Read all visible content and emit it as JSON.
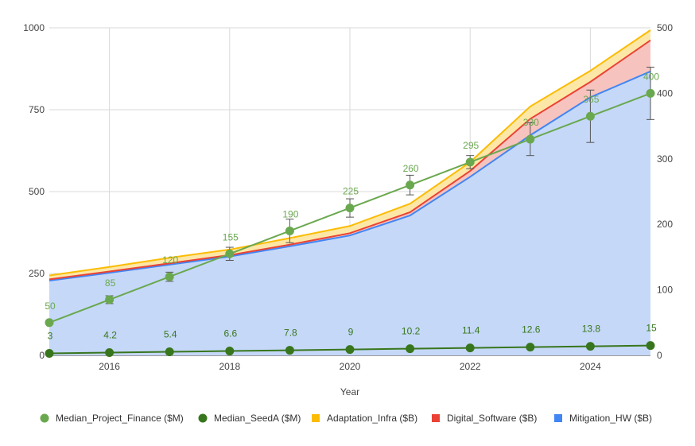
{
  "chart_data": {
    "type": "area",
    "title": "",
    "xlabel": "Year",
    "x": [
      2015,
      2016,
      2017,
      2018,
      2019,
      2020,
      2021,
      2022,
      2023,
      2024,
      2025
    ],
    "x_ticks": [
      "2016",
      "2018",
      "2020",
      "2022",
      "2024"
    ],
    "y_left_ticks": [
      "0",
      "250",
      "500",
      "750",
      "1000"
    ],
    "y_right_ticks": [
      "0",
      "100",
      "200",
      "300",
      "400",
      "500"
    ],
    "ylim_left": [
      0,
      1000
    ],
    "ylim_right": [
      0,
      500
    ],
    "grid": true,
    "legend_position": "bottom",
    "stacked_series": [
      {
        "name": "Mitigation_HW ($B)",
        "color": "#4285f4",
        "fill": "#c5d8f8",
        "values": [
          228,
          252,
          277,
          302,
          333,
          366,
          427,
          545,
          672,
          788,
          867
        ]
      },
      {
        "name": "Digital_Software ($B)",
        "color": "#ea4335",
        "fill": "#f7c3be",
        "values": [
          4,
          4,
          4,
          4,
          5,
          7,
          10,
          18,
          50,
          47,
          95
        ]
      },
      {
        "name": "Adaptation_Infra ($B)",
        "color": "#fbbc04",
        "fill": "#fde7a6",
        "values": [
          12,
          14,
          17,
          17,
          20,
          22,
          26,
          27,
          38,
          34,
          31
        ]
      }
    ],
    "line_series": [
      {
        "name": "Median_Project_Finance ($M)",
        "axis": "right",
        "color": "#6aa84f",
        "values": [
          50,
          85,
          120,
          155,
          190,
          225,
          260,
          295,
          330,
          365,
          400
        ],
        "labels": [
          "50",
          "85",
          "120",
          "155",
          "190",
          "225",
          "260",
          "295",
          "330",
          "365",
          "400"
        ],
        "error": [
          null,
          6,
          7,
          10,
          18,
          14,
          15,
          10,
          25,
          40,
          40
        ]
      },
      {
        "name": "Median_SeedA ($M)",
        "axis": "right",
        "color": "#38761d",
        "values": [
          3,
          4.2,
          5.4,
          6.6,
          7.8,
          9,
          10.2,
          11.4,
          12.6,
          13.8,
          15
        ],
        "labels": [
          "3",
          "4.2",
          "5.4",
          "6.6",
          "7.8",
          "9",
          "10.2",
          "11.4",
          "12.6",
          "13.8",
          "15"
        ]
      }
    ],
    "legend": [
      {
        "label": "Median_Project_Finance ($M)",
        "shape": "circle",
        "color": "#6aa84f"
      },
      {
        "label": "Median_SeedA ($M)",
        "shape": "circle",
        "color": "#38761d"
      },
      {
        "label": "Adaptation_Infra ($B)",
        "shape": "square",
        "color": "#fbbc04"
      },
      {
        "label": "Digital_Software ($B)",
        "shape": "square",
        "color": "#ea4335"
      },
      {
        "label": "Mitigation_HW ($B)",
        "shape": "square",
        "color": "#4285f4"
      }
    ]
  }
}
